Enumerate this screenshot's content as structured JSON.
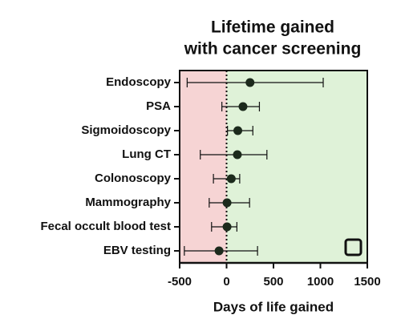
{
  "chart_data": {
    "type": "forest",
    "title": [
      "Lifetime gained",
      "with cancer screening"
    ],
    "x_label": "Days of life gained",
    "categories": [
      "Endoscopy",
      "PSA",
      "Sigmoidoscopy",
      "Lung CT",
      "Colonoscopy",
      "Mammography",
      "Fecal occult blood test",
      "EBV testing"
    ],
    "values": [
      250,
      175,
      120,
      115,
      50,
      5,
      5,
      -80
    ],
    "lower": [
      -420,
      -50,
      10,
      -280,
      -140,
      -185,
      -160,
      -450
    ],
    "upper": [
      1030,
      350,
      280,
      430,
      140,
      245,
      110,
      330
    ],
    "color": "#1c2a1c",
    "negative_color": "#f6d4d4",
    "positive_color": "#dff2d8",
    "xlim": [
      -500,
      1500
    ],
    "xticks": [
      -500,
      0,
      500,
      1000,
      1500
    ]
  }
}
